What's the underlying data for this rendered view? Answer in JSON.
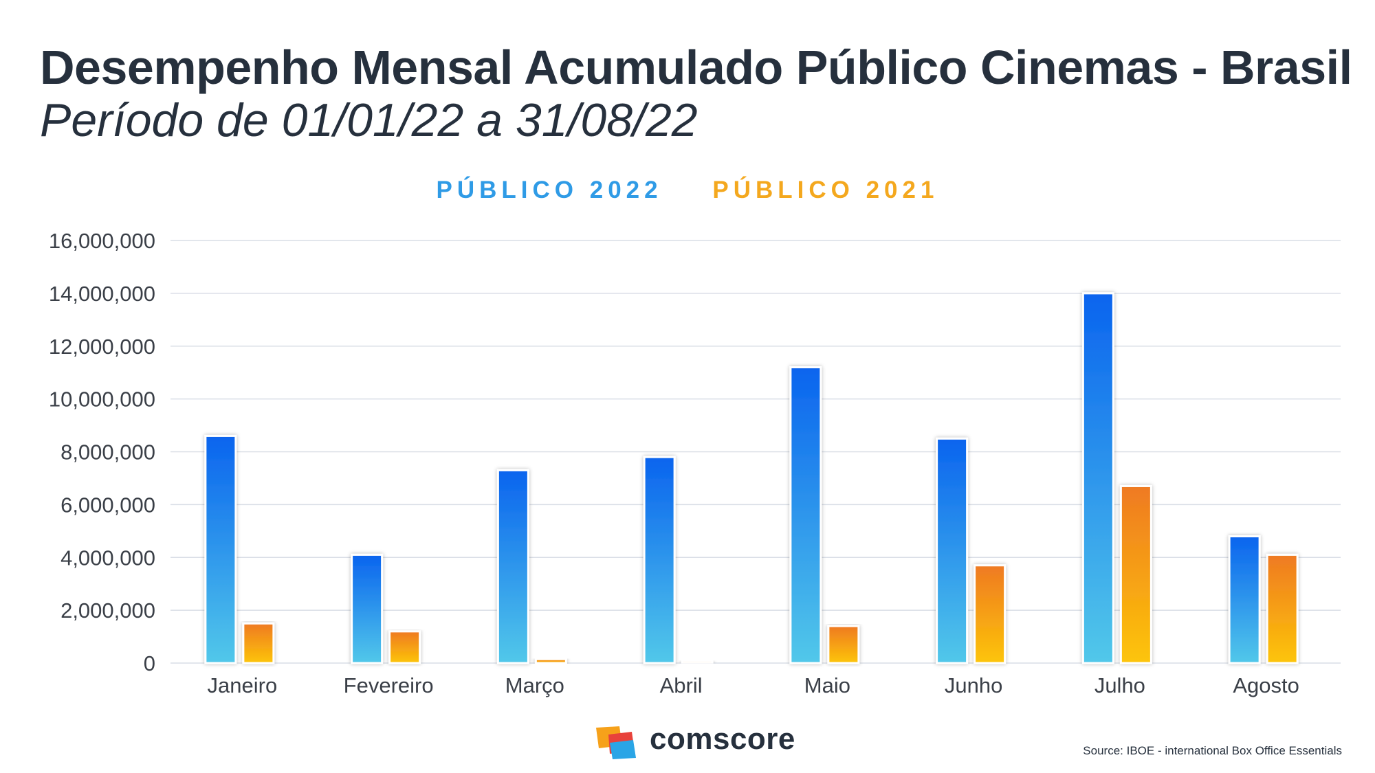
{
  "header": {
    "title": "Desempenho Mensal Acumulado Público Cinemas - Brasil",
    "subtitle": "Período de 01/01/22 a 31/08/22"
  },
  "colors": {
    "series_2022_top": "#0a64ee",
    "series_2022_bottom": "#52c8ea",
    "series_2021_top": "#ef7a22",
    "series_2021_bottom": "#fdc508",
    "legend_2022": "#2f9be6",
    "legend_2021": "#f4a81e",
    "grid": "#d9dee6"
  },
  "chart_data": {
    "type": "bar",
    "title": "",
    "xlabel": "",
    "ylabel": "",
    "ylim": [
      0,
      16000000
    ],
    "yticks": [
      "0",
      "2,000,000",
      "4,000,000",
      "6,000,000",
      "8,000,000",
      "10,000,000",
      "12,000,000",
      "14,000,000",
      "16,000,000"
    ],
    "ytick_values": [
      0,
      2000000,
      4000000,
      6000000,
      8000000,
      10000000,
      12000000,
      14000000,
      16000000
    ],
    "grid": true,
    "legend_position": "top-center",
    "categories": [
      "Janeiro",
      "Fevereiro",
      "Março",
      "Abril",
      "Maio",
      "Junho",
      "Julho",
      "Agosto"
    ],
    "series": [
      {
        "name": "PÚBLICO 2022",
        "values": [
          8600000,
          4100000,
          7300000,
          7800000,
          11200000,
          8500000,
          14000000,
          4800000
        ]
      },
      {
        "name": "PÚBLICO 2021",
        "values": [
          1500000,
          1200000,
          150000,
          80000,
          1400000,
          3700000,
          6700000,
          4100000
        ]
      }
    ]
  },
  "footer": {
    "logo_text": "comscore",
    "source": "Source: IBOE -  international Box Office Essentials"
  }
}
